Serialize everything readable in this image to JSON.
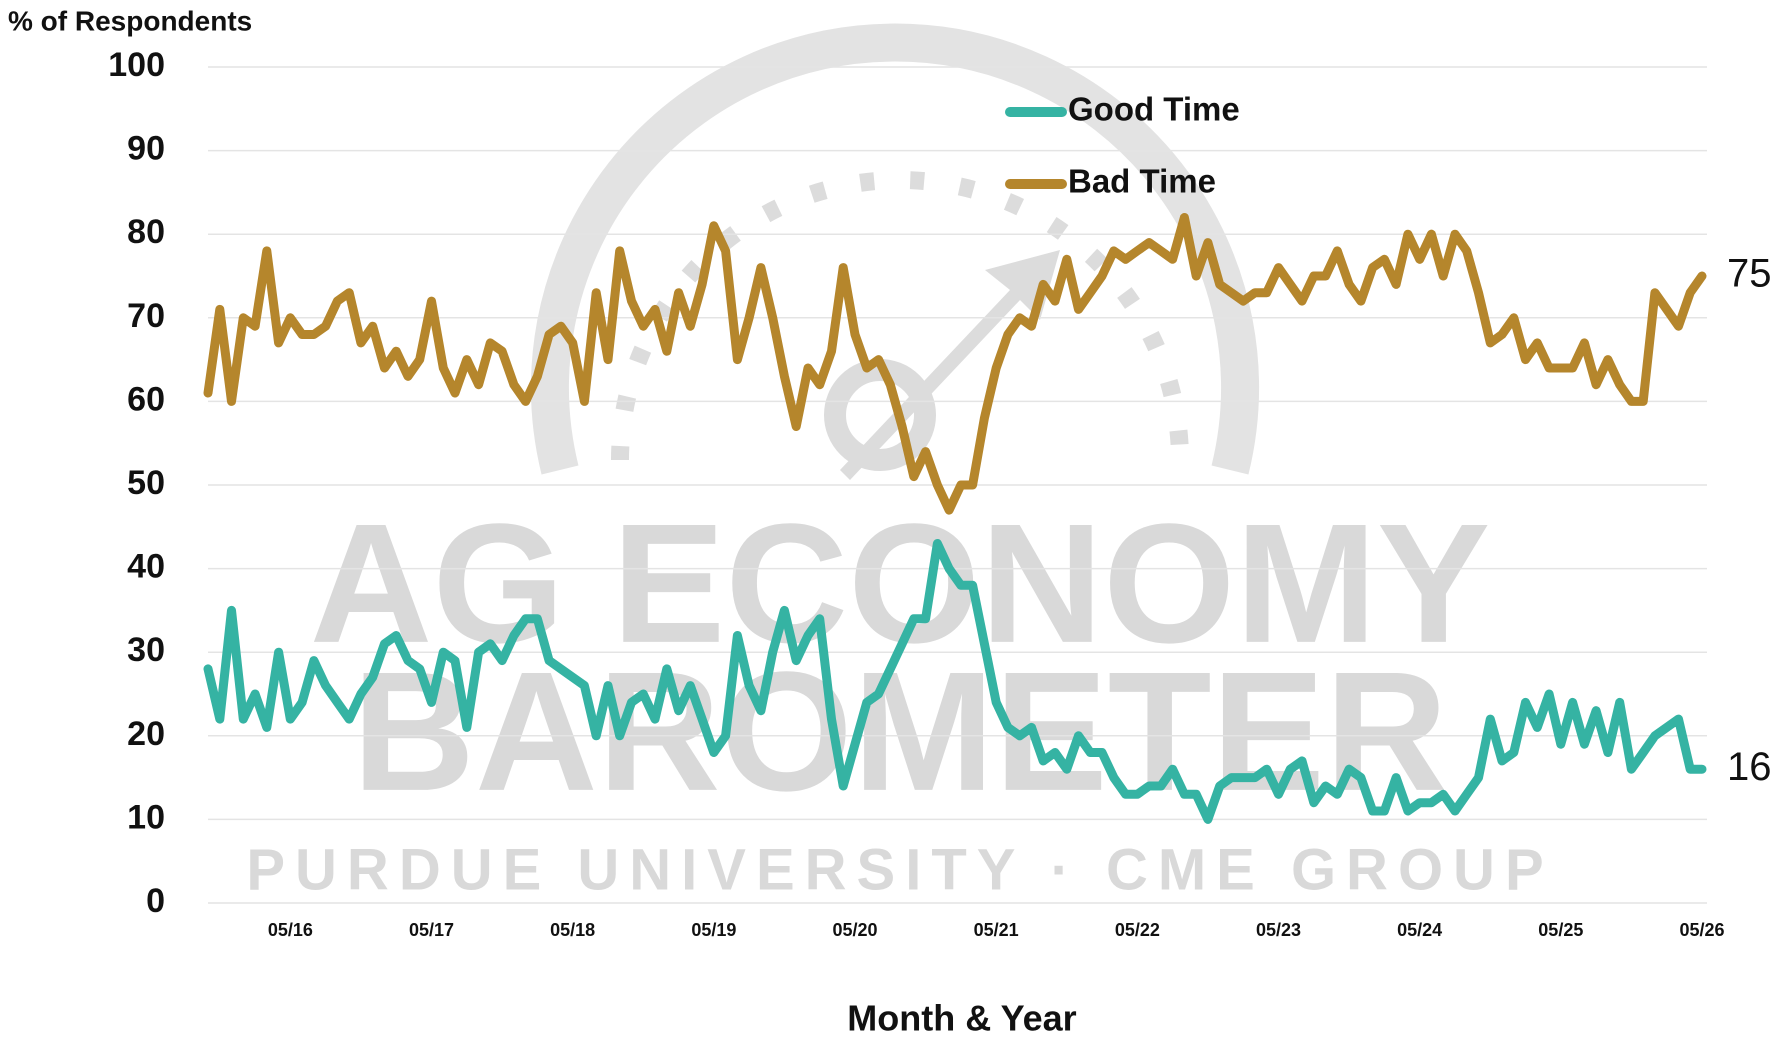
{
  "chart_data": {
    "type": "line",
    "y_axis_label": "% of Respondents",
    "x_axis_label": "Month & Year",
    "watermark": [
      "AG ECONOMY",
      "BAROMETER",
      "PURDUE UNIVERSITY · CME GROUP"
    ],
    "categories": [
      null,
      null,
      null,
      null,
      null,
      null,
      null,
      "05/16",
      null,
      null,
      null,
      null,
      null,
      null,
      null,
      null,
      null,
      null,
      null,
      "05/17",
      null,
      null,
      null,
      null,
      null,
      null,
      null,
      null,
      null,
      null,
      null,
      "05/18",
      null,
      null,
      null,
      null,
      null,
      null,
      null,
      null,
      null,
      null,
      null,
      "05/19",
      null,
      null,
      null,
      null,
      null,
      null,
      null,
      null,
      null,
      null,
      null,
      "05/20",
      null,
      null,
      null,
      null,
      null,
      null,
      null,
      null,
      null,
      null,
      null,
      "05/21",
      null,
      null,
      null,
      null,
      null,
      null,
      null,
      null,
      null,
      null,
      null,
      "05/22",
      null,
      null,
      null,
      null,
      null,
      null,
      null,
      null,
      null,
      null,
      null,
      "05/23",
      null,
      null,
      null,
      null,
      null,
      null,
      null,
      null,
      null,
      null,
      null,
      "05/24",
      null,
      null,
      null,
      null,
      null,
      null,
      null,
      null,
      null,
      null,
      null,
      "05/25",
      null,
      null,
      null,
      null,
      null,
      null,
      null,
      null,
      null,
      null,
      null,
      "05/26"
    ],
    "series": [
      {
        "name": "Good Time",
        "color": "#35b3a3",
        "values": [
          28,
          22,
          35,
          22,
          25,
          21,
          30,
          22,
          24,
          29,
          26,
          24,
          22,
          25,
          27,
          31,
          32,
          29,
          28,
          24,
          30,
          29,
          21,
          30,
          31,
          29,
          32,
          34,
          34,
          29,
          28,
          27,
          26,
          20,
          26,
          20,
          24,
          25,
          22,
          28,
          23,
          26,
          22,
          18,
          20,
          32,
          26,
          23,
          30,
          35,
          29,
          32,
          34,
          22,
          14,
          19,
          24,
          25,
          28,
          31,
          34,
          34,
          43,
          40,
          38,
          38,
          31,
          24,
          21,
          20,
          21,
          17,
          18,
          16,
          20,
          18,
          18,
          15,
          13,
          13,
          14,
          14,
          16,
          13,
          13,
          10,
          14,
          15,
          15,
          15,
          16,
          13,
          16,
          17,
          12,
          14,
          13,
          16,
          15,
          11,
          11,
          15,
          11,
          12,
          12,
          13,
          11,
          13,
          15,
          22,
          17,
          18,
          24,
          21,
          25,
          19,
          24,
          19,
          23,
          18,
          24,
          16,
          18,
          20,
          21,
          22,
          16,
          16
        ]
      },
      {
        "name": "Bad Time",
        "color": "#b5862c",
        "values": [
          61,
          71,
          60,
          70,
          69,
          78,
          67,
          70,
          68,
          68,
          69,
          72,
          73,
          67,
          69,
          64,
          66,
          63,
          65,
          72,
          64,
          61,
          65,
          62,
          67,
          66,
          62,
          60,
          63,
          68,
          69,
          67,
          60,
          73,
          65,
          78,
          72,
          69,
          71,
          66,
          73,
          69,
          74,
          81,
          78,
          65,
          70,
          76,
          70,
          63,
          57,
          64,
          62,
          66,
          76,
          68,
          64,
          65,
          62,
          57,
          51,
          54,
          50,
          47,
          50,
          50,
          58,
          64,
          68,
          70,
          69,
          74,
          72,
          77,
          71,
          73,
          75,
          78,
          77,
          78,
          79,
          78,
          77,
          82,
          75,
          79,
          74,
          73,
          72,
          73,
          73,
          76,
          74,
          72,
          75,
          75,
          78,
          74,
          72,
          76,
          77,
          74,
          80,
          77,
          80,
          75,
          80,
          78,
          73,
          67,
          68,
          70,
          65,
          67,
          64,
          64,
          64,
          67,
          62,
          65,
          62,
          60,
          60,
          73,
          71,
          69,
          73,
          75
        ]
      }
    ],
    "ylim": [
      0,
      100
    ],
    "yticks": [
      0,
      10,
      20,
      30,
      40,
      50,
      60,
      70,
      80,
      90,
      100
    ],
    "grid": true,
    "end_value_labels": true
  }
}
